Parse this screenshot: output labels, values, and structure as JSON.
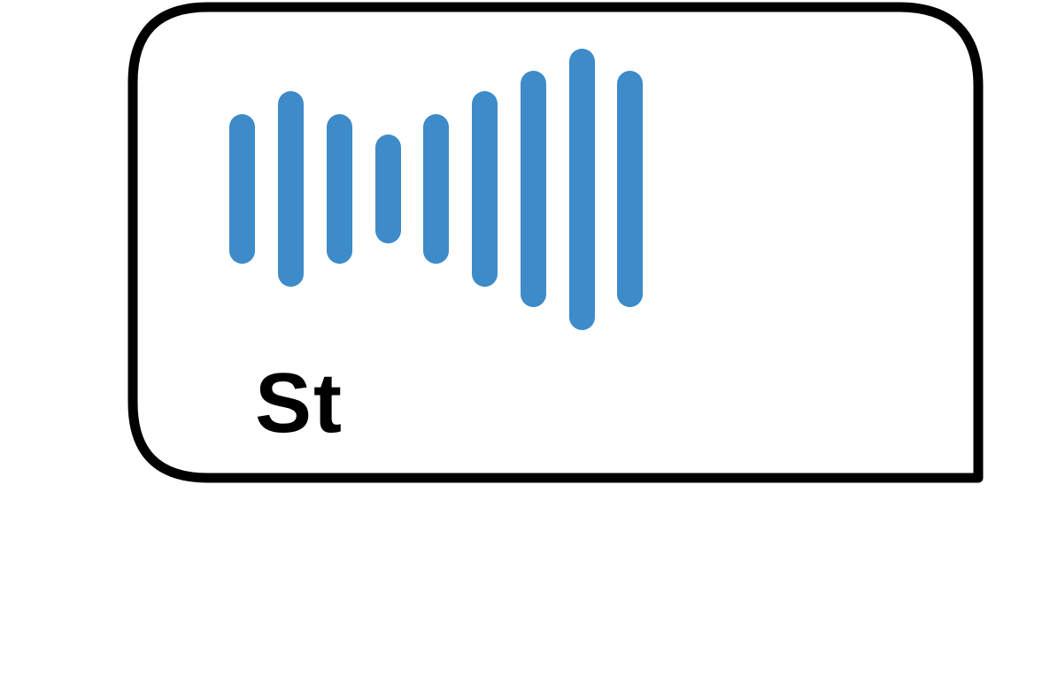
{
  "icon": {
    "name": "audio-waveform-card-icon",
    "label": "St",
    "accent_color": "#3d8bc9",
    "border_color": "#000000",
    "background_color": "#ffffff",
    "waveform_bars": [
      {
        "name": "waveform-bar-1"
      },
      {
        "name": "waveform-bar-2"
      },
      {
        "name": "waveform-bar-3"
      },
      {
        "name": "waveform-bar-4"
      },
      {
        "name": "waveform-bar-5"
      },
      {
        "name": "waveform-bar-6"
      },
      {
        "name": "waveform-bar-7"
      },
      {
        "name": "waveform-bar-8"
      },
      {
        "name": "waveform-bar-9"
      }
    ]
  }
}
